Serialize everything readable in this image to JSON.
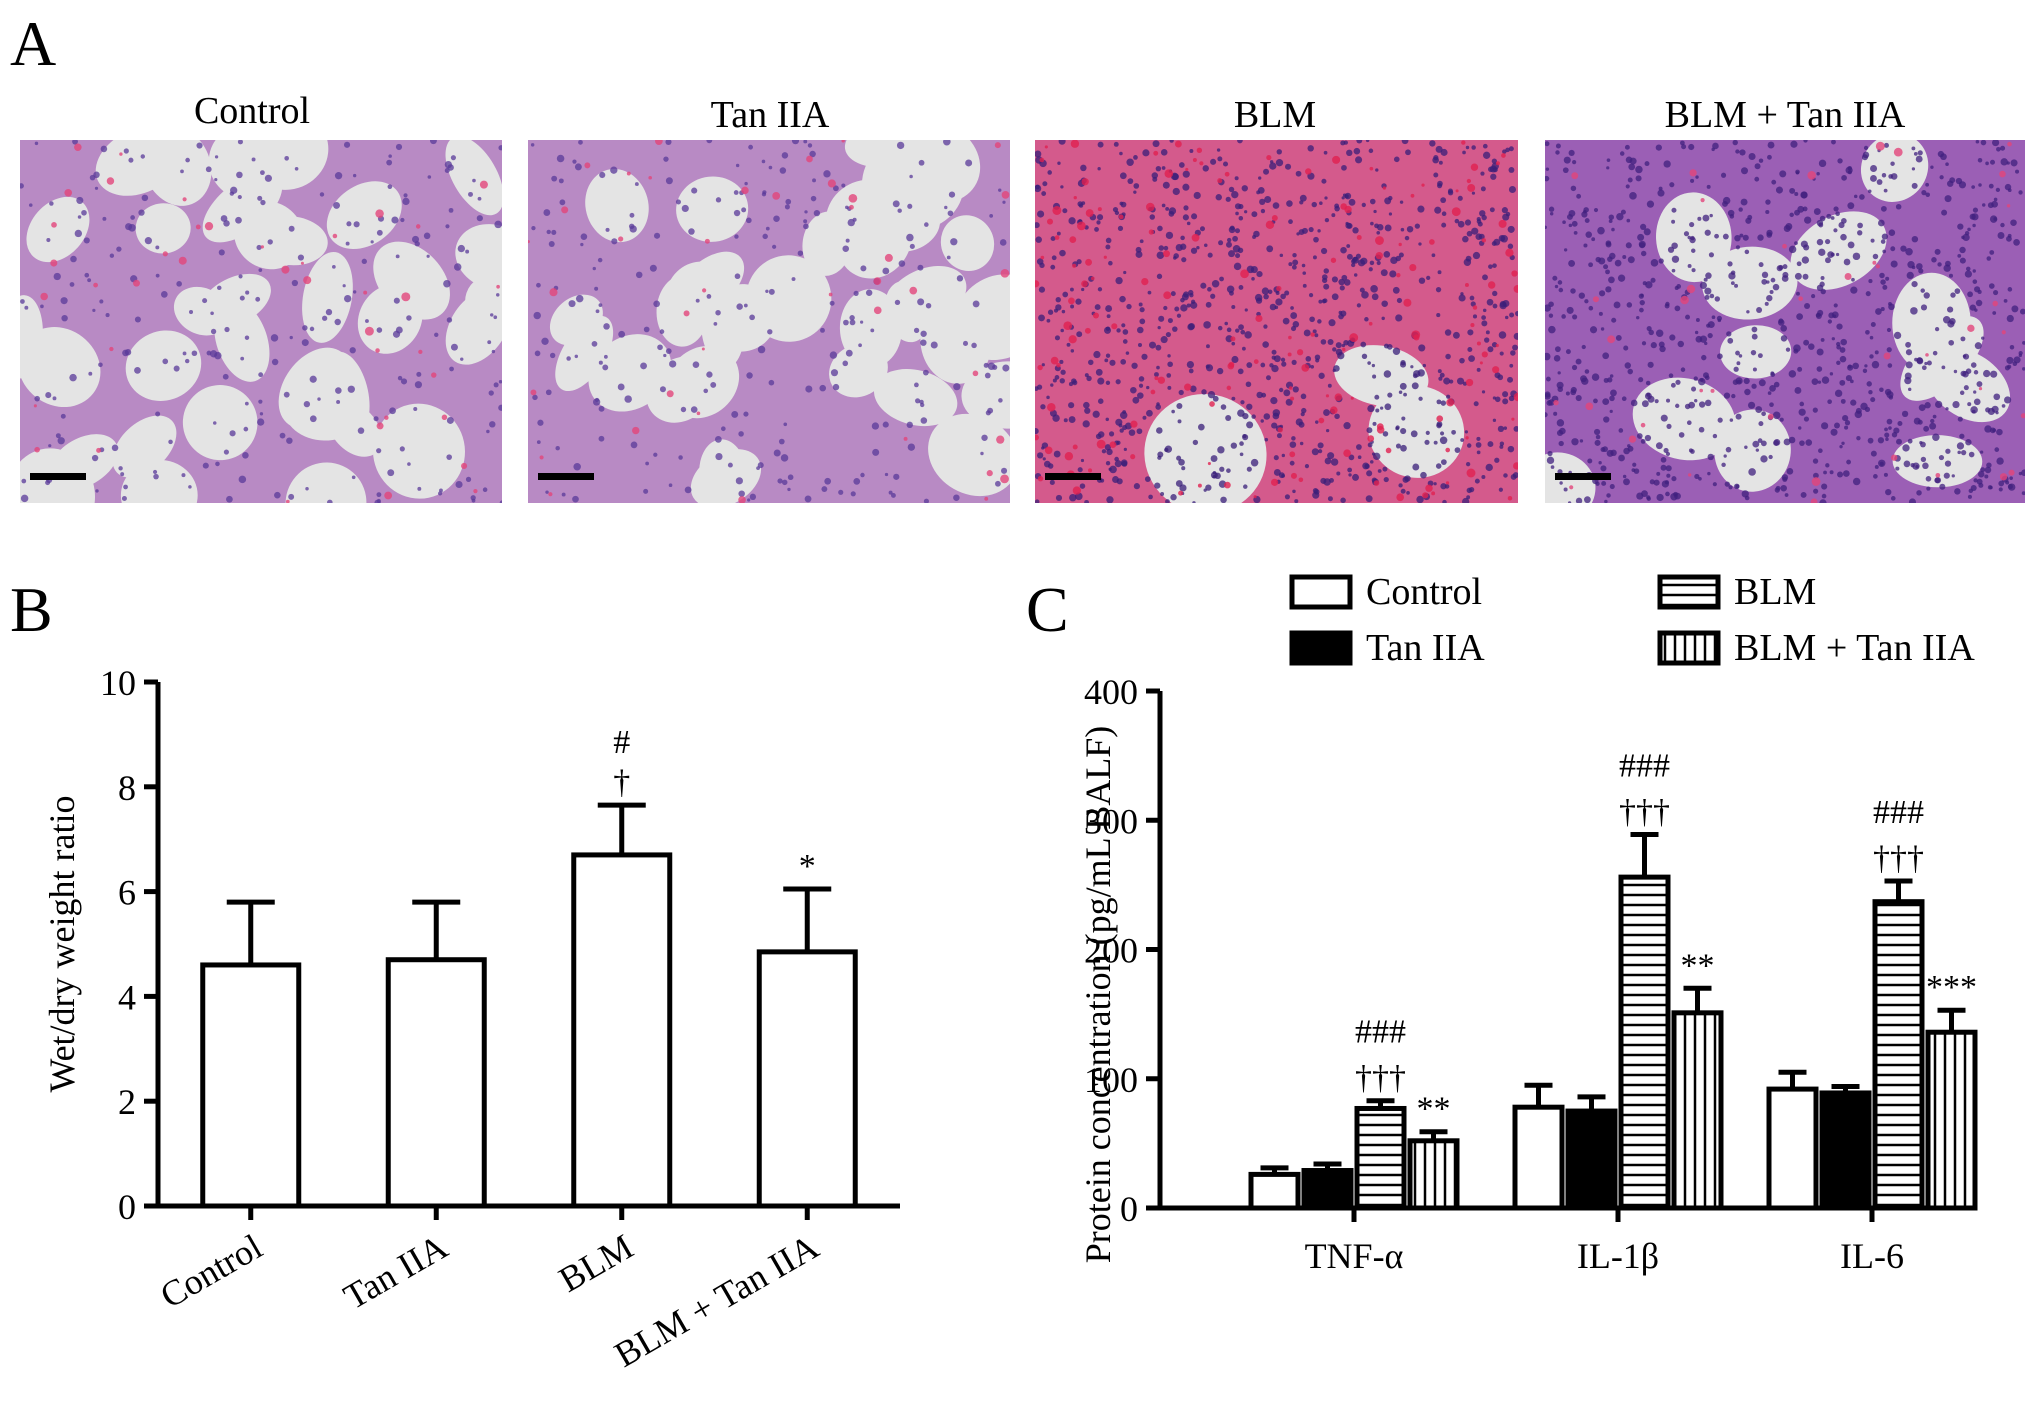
{
  "panels": {
    "a_letter": "A",
    "b_letter": "B",
    "c_letter": "C"
  },
  "micrographs": [
    {
      "title": "Control",
      "tissue": "normal",
      "colors": {
        "bg": "#dedede",
        "tissue": "#b88ac4",
        "nuclei": "#5a3a9a",
        "blood": "#e2457a"
      }
    },
    {
      "title": "Tan IIA",
      "tissue": "normal",
      "colors": {
        "bg": "#dedede",
        "tissue": "#b88ac4",
        "nuclei": "#5a3a9a",
        "blood": "#e2457a"
      }
    },
    {
      "title": "BLM",
      "tissue": "fibrotic",
      "colors": {
        "bg": "#d45a8c",
        "tissue": "#c0407a",
        "nuclei": "#3a1f7a",
        "blood": "#e02050"
      }
    },
    {
      "title": "BLM + Tan IIA",
      "tissue": "dense",
      "colors": {
        "bg": "#dedede",
        "tissue": "#9b5fb5",
        "nuclei": "#40207f",
        "blood": "#e2457a"
      }
    }
  ],
  "chart_data": [
    {
      "type": "bar",
      "panel": "B",
      "categories": [
        "Control",
        "Tan IIA",
        "BLM",
        "BLM + Tan IIA"
      ],
      "values": [
        4.6,
        4.7,
        6.7,
        4.85
      ],
      "errors": [
        1.2,
        1.1,
        0.95,
        1.2
      ],
      "annotations": [
        [],
        [],
        [
          "#",
          "†"
        ],
        [
          "*"
        ]
      ],
      "xlabel": "",
      "ylabel": "Wet/dry weight ratio",
      "ylim": [
        0,
        10
      ],
      "yticks": [
        0,
        2,
        4,
        6,
        8,
        10
      ],
      "legend": null
    },
    {
      "type": "bar",
      "panel": "C",
      "categories": [
        "TNF-α",
        "IL-1β",
        "IL-6"
      ],
      "series": [
        {
          "name": "Control",
          "pattern": "open",
          "values": [
            26,
            78,
            92
          ],
          "errors": [
            5,
            17,
            13
          ]
        },
        {
          "name": "Tan IIA",
          "pattern": "solid",
          "values": [
            29,
            75,
            89
          ],
          "errors": [
            5,
            11,
            5
          ]
        },
        {
          "name": "BLM",
          "pattern": "horizontal",
          "values": [
            77,
            256,
            237
          ],
          "errors": [
            6,
            33,
            16
          ]
        },
        {
          "name": "BLM + Tan IIA",
          "pattern": "vertical",
          "values": [
            52,
            151,
            136
          ],
          "errors": [
            7,
            19,
            17
          ]
        }
      ],
      "annotations": [
        {
          "category": 0,
          "series": 2,
          "lines": [
            "###",
            "†††"
          ]
        },
        {
          "category": 0,
          "series": 3,
          "lines": [
            "**"
          ]
        },
        {
          "category": 1,
          "series": 2,
          "lines": [
            "###",
            "†††"
          ]
        },
        {
          "category": 1,
          "series": 3,
          "lines": [
            "**"
          ]
        },
        {
          "category": 2,
          "series": 2,
          "lines": [
            "###",
            "†††"
          ]
        },
        {
          "category": 2,
          "series": 3,
          "lines": [
            "***"
          ]
        }
      ],
      "xlabel": "",
      "ylabel": "Protein concentration (pg/mL BALF)",
      "ylim": [
        0,
        400
      ],
      "yticks": [
        0,
        100,
        200,
        300,
        400
      ],
      "legend": "top"
    }
  ]
}
